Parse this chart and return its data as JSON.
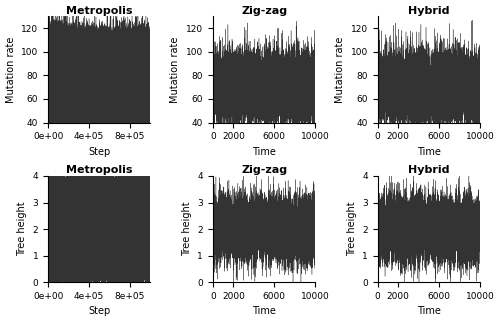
{
  "titles_row1": [
    "Metropolis",
    "Zig-zag",
    "Hybrid"
  ],
  "titles_row2": [
    "Metropolis",
    "Zig-zag",
    "Hybrid"
  ],
  "xlabel_col0": "Step",
  "xlabel_col12": "Time",
  "ylabel_row1": "Mutation rate",
  "ylabel_row2": "Tree height",
  "col0_xlim": [
    0,
    1000000
  ],
  "col12_xlim": [
    0,
    10000
  ],
  "row1_ylim": [
    40,
    130
  ],
  "row2_ylim": [
    0,
    4
  ],
  "row1_yticks": [
    40,
    60,
    80,
    100,
    120
  ],
  "row2_yticks": [
    0,
    1,
    2,
    3,
    4
  ],
  "col0_xticks": [
    0,
    400000,
    800000
  ],
  "col12_xticks": [
    0,
    2000,
    6000,
    10000
  ],
  "metropolis_n": 1000000,
  "zigzag_n": 10000,
  "hybrid_n": 10000,
  "mutation_mean": 70.0,
  "mutation_std": 15.0,
  "mutation_ar": 0.3,
  "tree_mean": 2.0,
  "tree_std": 0.6,
  "tree_ar": 0.3,
  "line_color": "#000000",
  "line_alpha": 0.8,
  "line_width": 0.25,
  "bg_color": "#ffffff",
  "title_fontsize": 8,
  "label_fontsize": 7,
  "tick_fontsize": 6.5
}
